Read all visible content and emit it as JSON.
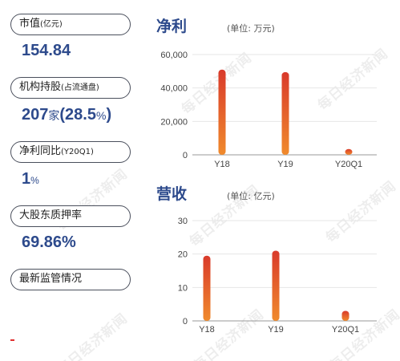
{
  "left_panel": {
    "market_cap": {
      "label": "市值",
      "label_unit": "(亿元)",
      "value": "154.84"
    },
    "institution": {
      "label": "机构持股",
      "label_unit": "(占流通盘)",
      "value_num": "207",
      "value_unit": "家",
      "value_paren_open": "(",
      "value_pct": "28.5",
      "value_pct_sign": "%",
      "value_paren_close": ")"
    },
    "profit_yoy": {
      "label": "净利同比",
      "label_unit": "(Y20Q1)",
      "value": "1",
      "value_unit": "%"
    },
    "pledge": {
      "label": "大股东质押率",
      "value": "69.86%"
    },
    "regulation": {
      "label": "最新监管情况"
    }
  },
  "watermark": "每日经济新闻",
  "colors": {
    "accent": "#2d4a8c",
    "bar_top": "#d93a2b",
    "bar_bottom": "#f08a2c"
  },
  "chart_data": [
    {
      "type": "bar",
      "title": "净利",
      "unit_label": "(单位: 万元)",
      "categories": [
        "Y18",
        "Y19",
        "Y20Q1"
      ],
      "values": [
        51000,
        49500,
        3500
      ],
      "ylim": [
        0,
        60000
      ],
      "yticks": [
        0,
        20000,
        40000,
        60000
      ],
      "ytick_labels": [
        "0",
        "20,000",
        "40,000",
        "60,000"
      ],
      "grid": true
    },
    {
      "type": "bar",
      "title": "营收",
      "unit_label": "(单位: 亿元)",
      "categories": [
        "Y18",
        "Y19",
        "Y20Q1"
      ],
      "values": [
        19.5,
        21,
        3
      ],
      "ylim": [
        0,
        30
      ],
      "yticks": [
        0,
        10,
        20,
        30
      ],
      "ytick_labels": [
        "0",
        "10",
        "20",
        "30"
      ],
      "grid": true
    }
  ]
}
